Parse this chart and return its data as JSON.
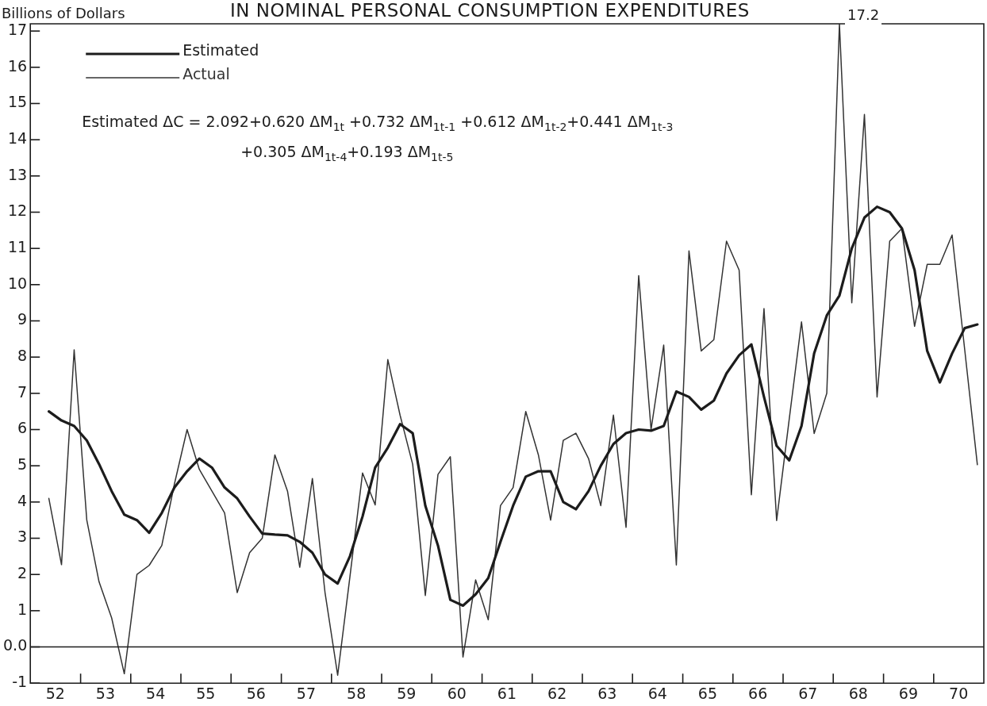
{
  "chart_data": {
    "type": "line",
    "title": "IN NOMINAL PERSONAL CONSUMPTION EXPENDITURES",
    "ylabel": "Billions of Dollars",
    "annotations": [
      "Estimated ΔC = 2.092+0.620 ΔM$_{1t}$ +0.732 ΔM$_{1t-1}$ +0.612 ΔM$_{1t-2}$+0.441 ΔM$_{1t-3}$",
      "+0.305 ΔM$_{1t-4}$+0.193 ΔM$_{1t-5}$",
      {
        "text": "17.2",
        "x": "1968-02-15",
        "y": 17.2
      }
    ],
    "x": [
      "1952-05-15",
      "1952-08-15",
      "1952-11-15",
      "1953-02-15",
      "1953-05-15",
      "1953-08-15",
      "1953-11-15",
      "1954-02-15",
      "1954-05-15",
      "1954-08-15",
      "1954-11-15",
      "1955-02-15",
      "1955-05-15",
      "1955-08-15",
      "1955-11-15",
      "1956-02-15",
      "1956-05-15",
      "1956-08-15",
      "1956-11-15",
      "1957-02-15",
      "1957-05-15",
      "1957-08-15",
      "1957-11-15",
      "1958-02-15",
      "1958-05-15",
      "1958-08-15",
      "1958-11-15",
      "1959-02-15",
      "1959-05-15",
      "1959-08-15",
      "1959-11-15",
      "1960-02-15",
      "1960-05-15",
      "1960-08-15",
      "1960-11-15",
      "1961-02-15",
      "1961-05-15",
      "1961-08-15",
      "1961-11-15",
      "1962-02-15",
      "1962-05-15",
      "1962-08-15",
      "1962-11-15",
      "1963-02-15",
      "1963-05-15",
      "1963-08-15",
      "1963-11-15",
      "1964-02-15",
      "1964-05-15",
      "1964-08-15",
      "1964-11-15",
      "1965-02-15",
      "1965-05-15",
      "1965-08-15",
      "1965-11-15",
      "1966-02-15",
      "1966-05-15",
      "1966-08-15",
      "1966-11-15",
      "1967-02-15",
      "1967-05-15",
      "1967-08-15",
      "1967-11-15",
      "1968-02-15",
      "1968-05-15",
      "1968-08-15",
      "1968-11-15",
      "1969-02-15",
      "1969-05-15",
      "1969-08-15",
      "1969-11-15",
      "1970-02-15",
      "1970-05-15",
      "1970-08-15",
      "1970-11-15"
    ],
    "series": [
      {
        "name": "Estimated",
        "color": "#1c1c1c",
        "values": [
          6.5,
          6.25,
          6.1,
          5.7,
          5.05,
          4.3,
          3.65,
          3.5,
          3.15,
          3.7,
          4.4,
          4.85,
          5.2,
          4.95,
          4.4,
          4.1,
          3.6,
          3.13,
          3.1,
          3.08,
          2.9,
          2.6,
          2.0,
          1.75,
          2.5,
          3.6,
          4.95,
          5.5,
          6.15,
          5.9,
          3.9,
          2.8,
          1.3,
          1.14,
          1.45,
          1.9,
          2.9,
          3.9,
          4.7,
          4.85,
          4.85,
          4.0,
          3.8,
          4.3,
          5.0,
          5.6,
          5.9,
          6.0,
          5.97,
          6.1,
          7.05,
          6.9,
          6.55,
          6.8,
          7.55,
          8.05,
          8.35,
          6.9,
          5.55,
          5.15,
          6.1,
          8.1,
          9.15,
          9.7,
          11.0,
          11.85,
          12.15,
          12.0,
          11.55,
          10.4,
          8.17,
          7.3,
          8.1,
          8.8,
          8.9
        ]
      },
      {
        "name": "Actual",
        "color": "#333333",
        "values": [
          4.1,
          2.27,
          8.2,
          3.5,
          1.8,
          0.8,
          -0.74,
          2.0,
          2.25,
          2.8,
          4.5,
          6.0,
          4.9,
          4.3,
          3.7,
          1.5,
          2.6,
          3.0,
          5.3,
          4.3,
          2.2,
          4.65,
          1.5,
          -0.78,
          1.93,
          4.8,
          3.92,
          7.93,
          6.4,
          5.04,
          1.42,
          4.76,
          5.25,
          -0.28,
          1.85,
          0.75,
          3.9,
          4.4,
          6.5,
          5.3,
          3.5,
          5.7,
          5.9,
          5.2,
          3.9,
          6.4,
          3.3,
          10.25,
          6.0,
          8.33,
          2.26,
          10.93,
          8.17,
          8.48,
          11.2,
          10.4,
          4.2,
          9.34,
          3.49,
          6.3,
          8.97,
          5.89,
          7.0,
          17.2,
          9.5,
          14.7,
          6.9,
          11.2,
          11.55,
          8.85,
          10.56,
          10.56,
          11.37,
          8.2,
          5.03
        ]
      }
    ],
    "xlim": [
      "1952",
      "1971"
    ],
    "xticks": [
      {
        "value": "1952-07-01",
        "label": "52"
      },
      {
        "value": "1953",
        "label": null
      },
      {
        "value": "1953-07-01",
        "label": "53"
      },
      {
        "value": "1954",
        "label": null
      },
      {
        "value": "1954-07-01",
        "label": "54"
      },
      {
        "value": "1955",
        "label": null
      },
      {
        "value": "1955-07-01",
        "label": "55"
      },
      {
        "value": "1956",
        "label": null
      },
      {
        "value": "1956-07-01",
        "label": "56"
      },
      {
        "value": "1957",
        "label": null
      },
      {
        "value": "1957-07-01",
        "label": "57"
      },
      {
        "value": "1958",
        "label": null
      },
      {
        "value": "1958-07-01",
        "label": "58"
      },
      {
        "value": "1959",
        "label": null
      },
      {
        "value": "1959-07-01",
        "label": "59"
      },
      {
        "value": "1960",
        "label": null
      },
      {
        "value": "1960-07-01",
        "label": "60"
      },
      {
        "value": "1961",
        "label": null
      },
      {
        "value": "1961-07-01",
        "label": "61"
      },
      {
        "value": "1962",
        "label": null
      },
      {
        "value": "1962-07-01",
        "label": "62"
      },
      {
        "value": "1963",
        "label": null
      },
      {
        "value": "1963-07-01",
        "label": "63"
      },
      {
        "value": "1964",
        "label": null
      },
      {
        "value": "1964-07-01",
        "label": "64"
      },
      {
        "value": "1965",
        "label": null
      },
      {
        "value": "1965-07-01",
        "label": "65"
      },
      {
        "value": "1966",
        "label": null
      },
      {
        "value": "1966-07-01",
        "label": "66"
      },
      {
        "value": "1967",
        "label": null
      },
      {
        "value": "1967-07-01",
        "label": "67"
      },
      {
        "value": "1968",
        "label": null
      },
      {
        "value": "1968-07-01",
        "label": "68"
      },
      {
        "value": "1969",
        "label": null
      },
      {
        "value": "1969-07-01",
        "label": "69"
      },
      {
        "value": "1970",
        "label": null
      },
      {
        "value": "1970-07-01",
        "label": "70"
      }
    ],
    "ylim": [
      -1,
      17.2
    ],
    "yticks": [
      -1,
      {
        "value": 0,
        "label": "0.0"
      },
      1,
      2,
      3,
      4,
      5,
      6,
      7,
      8,
      9,
      10,
      11,
      12,
      13,
      14,
      15,
      16,
      17
    ],
    "ref_lines": [
      {
        "axis": "y",
        "value": 0
      }
    ],
    "grid": false,
    "legend": "top left",
    "marker": "none"
  }
}
